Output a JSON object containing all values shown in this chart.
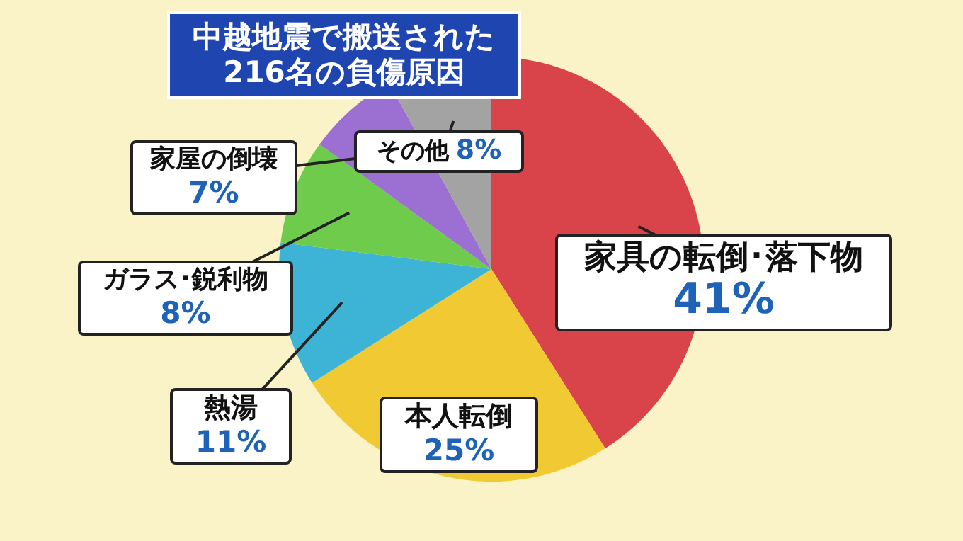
{
  "chart_data": {
    "type": "pie",
    "title": "中越地震で搬送された216名の負傷原因",
    "categories": [
      "家具の転倒･落下物",
      "本人転倒",
      "熱湯",
      "ガラス･鋭利物",
      "家屋の倒壊",
      "その他"
    ],
    "values": [
      41,
      25,
      11,
      8,
      7,
      8
    ],
    "value_labels": [
      "41%",
      "25%",
      "11%",
      "8%",
      "7%",
      "8%"
    ],
    "colors": [
      "#d9434a",
      "#f1c933",
      "#3db4d6",
      "#6ecb4c",
      "#9b70d2",
      "#a3a3a3"
    ],
    "legend": false
  }
}
